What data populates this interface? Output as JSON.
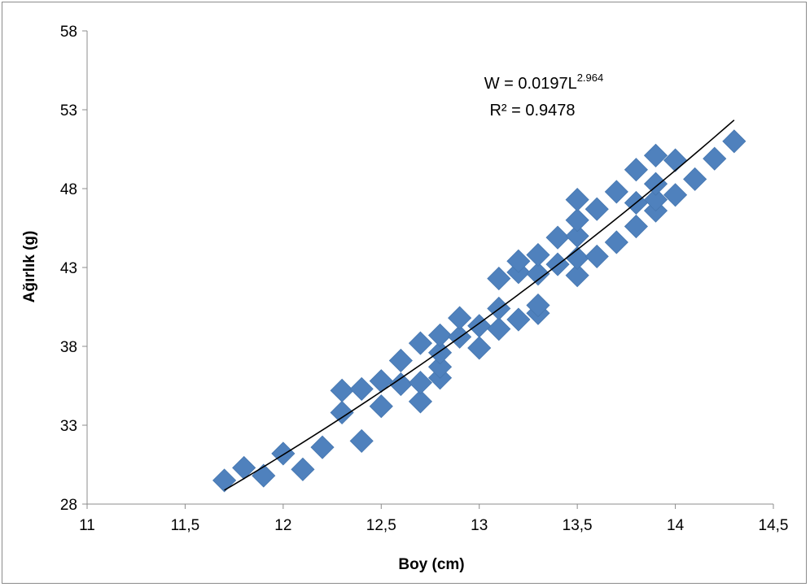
{
  "chart_data": {
    "type": "scatter",
    "xlabel": "Boy (cm)",
    "ylabel": "Ağırlık (g)",
    "xlim": [
      11,
      14.5
    ],
    "ylim": [
      28,
      58
    ],
    "x_ticks": [
      "11",
      "11,5",
      "12",
      "12,5",
      "13",
      "13,5",
      "14",
      "14,5"
    ],
    "y_ticks": [
      "28",
      "33",
      "38",
      "43",
      "48",
      "53",
      "58"
    ],
    "grid": false,
    "legend": "none",
    "marker_color": "#4f81bd",
    "trendline_color": "#000000",
    "equation": {
      "base": "W = 0.0197L",
      "exponent": "2.964",
      "r_squared": "R² = 0.9478"
    },
    "trendline": {
      "type": "power",
      "a": 0.0197,
      "b": 2.964,
      "x_range": [
        11.7,
        14.3
      ]
    },
    "series": [
      {
        "points": [
          [
            11.7,
            29.5
          ],
          [
            11.8,
            30.3
          ],
          [
            11.9,
            29.8
          ],
          [
            12.0,
            31.2
          ],
          [
            12.1,
            30.2
          ],
          [
            12.2,
            31.6
          ],
          [
            12.3,
            33.8
          ],
          [
            12.3,
            35.2
          ],
          [
            12.4,
            35.3
          ],
          [
            12.4,
            32.0
          ],
          [
            12.5,
            34.2
          ],
          [
            12.5,
            35.8
          ],
          [
            12.6,
            35.6
          ],
          [
            12.6,
            37.1
          ],
          [
            12.7,
            34.5
          ],
          [
            12.7,
            35.7
          ],
          [
            12.7,
            38.2
          ],
          [
            12.8,
            36.0
          ],
          [
            12.8,
            36.7
          ],
          [
            12.8,
            37.6
          ],
          [
            12.8,
            38.7
          ],
          [
            12.9,
            38.6
          ],
          [
            12.9,
            39.8
          ],
          [
            13.0,
            37.9
          ],
          [
            13.0,
            39.3
          ],
          [
            13.1,
            39.1
          ],
          [
            13.1,
            40.4
          ],
          [
            13.1,
            42.3
          ],
          [
            13.2,
            39.7
          ],
          [
            13.2,
            42.7
          ],
          [
            13.2,
            43.4
          ],
          [
            13.3,
            40.1
          ],
          [
            13.3,
            40.6
          ],
          [
            13.3,
            42.6
          ],
          [
            13.3,
            43.8
          ],
          [
            13.4,
            43.2
          ],
          [
            13.4,
            44.9
          ],
          [
            13.5,
            42.5
          ],
          [
            13.5,
            43.6
          ],
          [
            13.5,
            45.0
          ],
          [
            13.5,
            46.0
          ],
          [
            13.5,
            47.3
          ],
          [
            13.6,
            43.7
          ],
          [
            13.6,
            46.7
          ],
          [
            13.7,
            44.6
          ],
          [
            13.7,
            47.8
          ],
          [
            13.8,
            45.6
          ],
          [
            13.8,
            47.1
          ],
          [
            13.8,
            49.2
          ],
          [
            13.9,
            46.6
          ],
          [
            13.9,
            47.3
          ],
          [
            13.9,
            48.3
          ],
          [
            13.9,
            50.1
          ],
          [
            14.0,
            47.6
          ],
          [
            14.0,
            49.8
          ],
          [
            14.1,
            48.6
          ],
          [
            14.2,
            49.9
          ],
          [
            14.3,
            51.0
          ]
        ]
      }
    ]
  }
}
